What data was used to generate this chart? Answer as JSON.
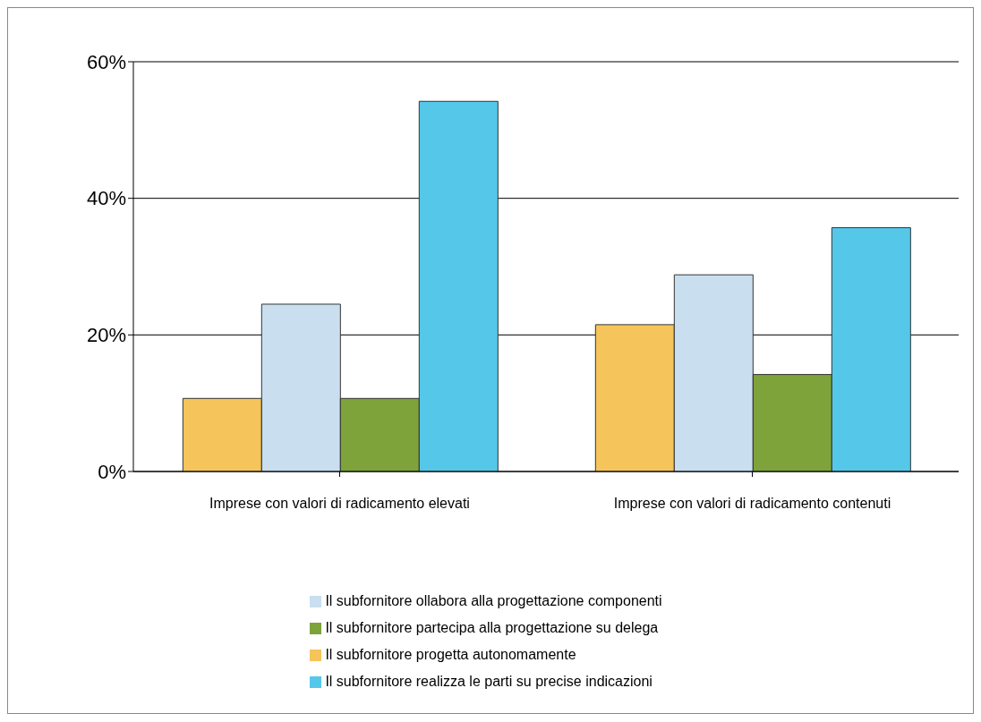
{
  "chart_data": {
    "type": "bar",
    "categories": [
      "Imprese con valori di radicamento elevati",
      "Imprese con valori di radicamento contenuti"
    ],
    "series": [
      {
        "name": "Il subfornitore progetta autonomamente",
        "color": "#f5c45a",
        "values": [
          10.7,
          21.5
        ]
      },
      {
        "name": "Il subfornitore ollabora alla progettazione componenti",
        "color": "#c9dff0",
        "values": [
          24.5,
          28.8
        ]
      },
      {
        "name": "Il subfornitore partecipa alla progettazione su delega",
        "color": "#7da33a",
        "values": [
          10.7,
          14.2
        ]
      },
      {
        "name": "Il subfornitore realizza le parti su precise indicazioni",
        "color": "#55c8ea",
        "values": [
          54.2,
          35.7
        ]
      }
    ],
    "ylim": [
      0,
      60
    ],
    "yticks": [
      {
        "value": 0,
        "label": "0%"
      },
      {
        "value": 20,
        "label": "20%"
      },
      {
        "value": 40,
        "label": "40%"
      },
      {
        "value": 60,
        "label": "60%"
      }
    ],
    "grid": "y",
    "legend": "bottom"
  }
}
